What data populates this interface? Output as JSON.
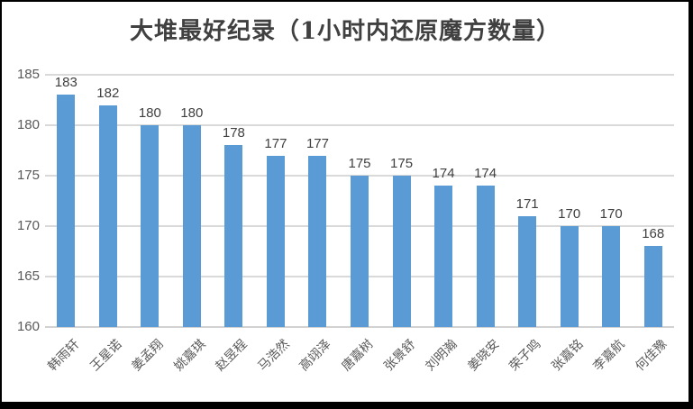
{
  "title": "大堆最好纪录（1小时内还原魔方数量）",
  "colors": {
    "bar": "#5b9bd5",
    "gridline": "#d9d9d9",
    "axis_line": "#d2d2d2",
    "axis_text": "#595959",
    "value_label_text": "#404040",
    "title_text": "#404040",
    "border": "#000000",
    "background": "#ffffff"
  },
  "chart_data": {
    "type": "bar",
    "title": "大堆最好纪录（1小时内还原魔方数量）",
    "categories": [
      "韩雨轩",
      "王星诺",
      "姜孟翔",
      "姚嘉琪",
      "赵昱程",
      "马浩然",
      "高翊泽",
      "唐嘉树",
      "张景舒",
      "刘明瀚",
      "姜晓安",
      "荣子鸣",
      "张嘉铭",
      "李嘉航",
      "何佳豫"
    ],
    "values": [
      183,
      182,
      180,
      180,
      178,
      177,
      177,
      175,
      175,
      174,
      174,
      171,
      170,
      170,
      168
    ],
    "data_labels_shown": true,
    "xlabel": "",
    "ylabel": "",
    "ylim": [
      160,
      185
    ],
    "yticks": [
      160,
      165,
      170,
      175,
      180,
      185
    ],
    "grid": true,
    "legend": false,
    "category_label_rotation_deg": 45
  }
}
